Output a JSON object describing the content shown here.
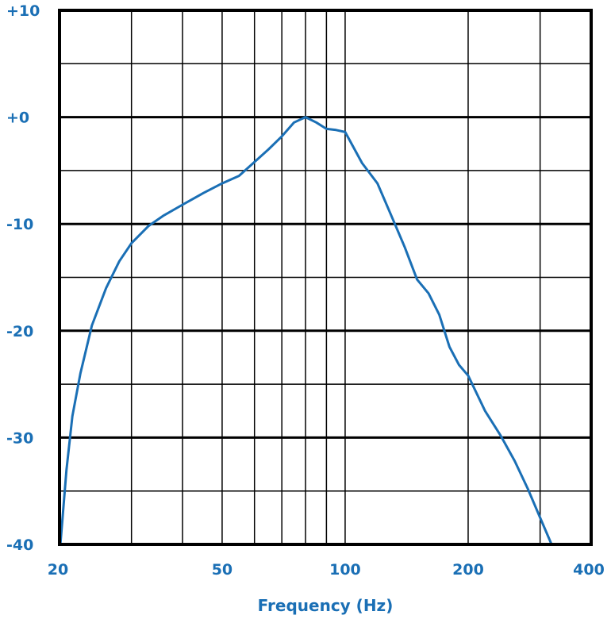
{
  "chart_data": {
    "type": "line",
    "title": "",
    "xlabel": "Frequency (Hz)",
    "ylabel": "",
    "x_scale": "log",
    "xlim": [
      20,
      400
    ],
    "ylim": [
      -40,
      10
    ],
    "grid": true,
    "x_tick_labels": [
      {
        "value": 20,
        "label": "20"
      },
      {
        "value": 50,
        "label": "50"
      },
      {
        "value": 100,
        "label": "100"
      },
      {
        "value": 200,
        "label": "200"
      },
      {
        "value": 400,
        "label": "400"
      }
    ],
    "y_tick_labels": [
      {
        "value": 10,
        "label": "+10"
      },
      {
        "value": 0,
        "label": "+0"
      },
      {
        "value": -10,
        "label": "-10"
      },
      {
        "value": -20,
        "label": "-20"
      },
      {
        "value": -30,
        "label": "-30"
      },
      {
        "value": -40,
        "label": "-40"
      }
    ],
    "x_grid": [
      20,
      30,
      40,
      50,
      60,
      70,
      80,
      90,
      100,
      200,
      300,
      400
    ],
    "y_grid": [
      10,
      5,
      0,
      -5,
      -10,
      -15,
      -20,
      -25,
      -30,
      -35,
      -40
    ],
    "series": [
      {
        "color": "#1a6fb5",
        "points": [
          [
            20.1,
            -40
          ],
          [
            20.8,
            -33
          ],
          [
            21.5,
            -28
          ],
          [
            22.5,
            -24
          ],
          [
            24,
            -19.5
          ],
          [
            26,
            -16
          ],
          [
            28,
            -13.5
          ],
          [
            30,
            -11.8
          ],
          [
            33,
            -10.2
          ],
          [
            36,
            -9.2
          ],
          [
            40,
            -8.2
          ],
          [
            45,
            -7.1
          ],
          [
            50,
            -6.2
          ],
          [
            55,
            -5.5
          ],
          [
            60,
            -4.2
          ],
          [
            65,
            -3
          ],
          [
            70,
            -1.8
          ],
          [
            75,
            -0.5
          ],
          [
            80,
            0
          ],
          [
            85,
            -0.5
          ],
          [
            90,
            -1.1
          ],
          [
            95,
            -1.2
          ],
          [
            100,
            -1.4
          ],
          [
            110,
            -4.3
          ],
          [
            120,
            -6.2
          ],
          [
            130,
            -9.3
          ],
          [
            140,
            -12.2
          ],
          [
            150,
            -15.2
          ],
          [
            160,
            -16.5
          ],
          [
            170,
            -18.5
          ],
          [
            180,
            -21.5
          ],
          [
            190,
            -23.2
          ],
          [
            200,
            -24.2
          ],
          [
            220,
            -27.5
          ],
          [
            240,
            -29.8
          ],
          [
            260,
            -32.2
          ],
          [
            280,
            -34.8
          ],
          [
            300,
            -37.5
          ],
          [
            320,
            -40
          ]
        ]
      }
    ]
  }
}
